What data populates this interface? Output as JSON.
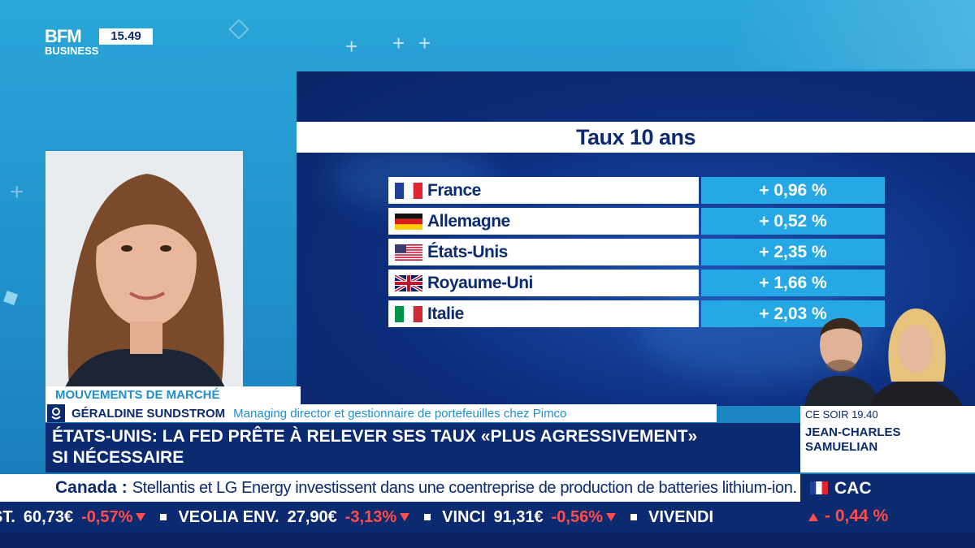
{
  "branding": {
    "logo_line1": "BFM",
    "logo_line2": "BUSINESS",
    "clock": "15.49"
  },
  "chart": {
    "title": "Taux 10 ans",
    "rows": [
      {
        "country": "France",
        "value": "+ 0,96 %",
        "flag": "france-flag-icon"
      },
      {
        "country": "Allemagne",
        "value": "+ 0,52 %",
        "flag": "germany-flag-icon"
      },
      {
        "country": "États-Unis",
        "value": "+ 2,35 %",
        "flag": "usa-flag-icon"
      },
      {
        "country": "Royaume-Uni",
        "value": "+ 1,66 %",
        "flag": "uk-flag-icon"
      },
      {
        "country": "Italie",
        "value": "+ 2,03 %",
        "flag": "italy-flag-icon"
      }
    ]
  },
  "lower_third": {
    "tag": "MOUVEMENTS DE MARCHÉ",
    "guest_name": "GÉRALDINE SUNDSTROM",
    "guest_role": "Managing director et gestionnaire de portefeuilles chez Pimco",
    "headline_line1": "ÉTATS-UNIS: LA FED PRÊTE À RELEVER SES TAUX «PLUS AGRESSIVEMENT»",
    "headline_line2": "SI NÉCESSAIRE"
  },
  "tonight": {
    "time": "CE SOIR 19.40",
    "name_line1": "JEAN-CHARLES",
    "name_line2": "SAMUELIAN"
  },
  "news": {
    "country": "Canada :",
    "text": "Stellantis et LG Energy investissent dans une coentreprise de production de batteries lithium-ion."
  },
  "ticker": [
    {
      "name": "ST.",
      "price": "60,73€",
      "change": "-0,57%"
    },
    {
      "name": "VEOLIA ENV.",
      "price": "27,90€",
      "change": "-3,13%"
    },
    {
      "name": "VINCI",
      "price": "91,31€",
      "change": "-0,56%"
    },
    {
      "name": "VIVENDI",
      "price": "",
      "change": ""
    }
  ],
  "index": {
    "name": "CAC",
    "change": "- 0,44 %"
  },
  "colors": {
    "navy": "#0b2a6f",
    "cyan": "#27a8e6",
    "negative": "#ff4d4d"
  }
}
